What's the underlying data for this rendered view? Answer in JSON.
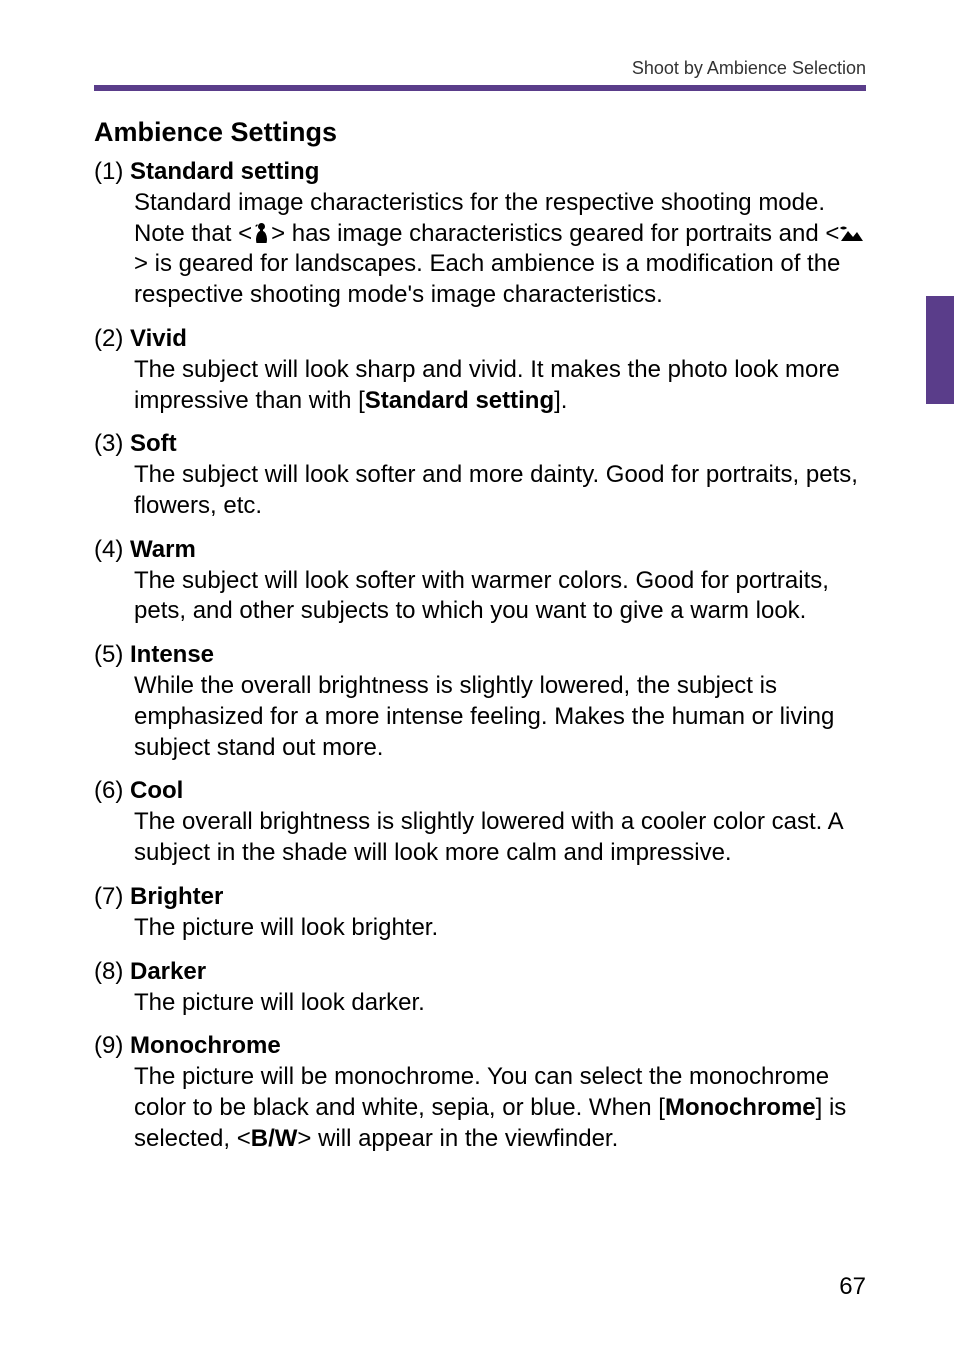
{
  "header": {
    "breadcrumb": "Shoot by Ambience Selection"
  },
  "colors": {
    "accent": "#5a3d8a",
    "text": "#000000",
    "headerText": "#333333"
  },
  "section": {
    "title": "Ambience Settings"
  },
  "items": [
    {
      "num": "(1)",
      "name": "Standard setting",
      "body_parts": [
        {
          "t": "text",
          "v": "Standard image characteristics for the respective shooting mode. Note that <"
        },
        {
          "t": "icon",
          "v": "portrait"
        },
        {
          "t": "text",
          "v": "> has image characteristics geared for portraits and <"
        },
        {
          "t": "icon",
          "v": "landscape"
        },
        {
          "t": "text",
          "v": "> is geared for landscapes. Each ambience is a modification of the respective shooting mode's image characteristics."
        }
      ]
    },
    {
      "num": "(2)",
      "name": "Vivid",
      "body_parts": [
        {
          "t": "text",
          "v": "The subject will look sharp and vivid. It makes the photo look more impressive than with ["
        },
        {
          "t": "bold",
          "v": "Standard setting"
        },
        {
          "t": "text",
          "v": "]."
        }
      ]
    },
    {
      "num": "(3)",
      "name": "Soft",
      "body_parts": [
        {
          "t": "text",
          "v": "The subject will look softer and more dainty. Good for portraits, pets, flowers, etc."
        }
      ]
    },
    {
      "num": "(4)",
      "name": "Warm",
      "body_parts": [
        {
          "t": "text",
          "v": "The subject will look softer with warmer colors. Good for portraits, pets, and other subjects to which you want to give a warm look."
        }
      ]
    },
    {
      "num": "(5)",
      "name": "Intense",
      "body_parts": [
        {
          "t": "text",
          "v": "While the overall brightness is slightly lowered, the subject is emphasized for a more intense feeling. Makes the human or living subject stand out more."
        }
      ]
    },
    {
      "num": "(6)",
      "name": "Cool",
      "body_parts": [
        {
          "t": "text",
          "v": "The overall brightness is slightly lowered with a cooler color cast. A subject in the shade will look more calm and impressive."
        }
      ]
    },
    {
      "num": "(7)",
      "name": "Brighter",
      "body_parts": [
        {
          "t": "text",
          "v": "The picture will look brighter."
        }
      ]
    },
    {
      "num": "(8)",
      "name": "Darker",
      "body_parts": [
        {
          "t": "text",
          "v": "The picture will look darker."
        }
      ]
    },
    {
      "num": "(9)",
      "name": "Monochrome",
      "body_parts": [
        {
          "t": "text",
          "v": "The picture will be monochrome. You can select the monochrome color to be black and white, sepia, or blue. When ["
        },
        {
          "t": "bold",
          "v": "Monochrome"
        },
        {
          "t": "text",
          "v": "] is selected, <"
        },
        {
          "t": "icon",
          "v": "bw"
        },
        {
          "t": "text",
          "v": "> will appear in the viewfinder."
        }
      ]
    }
  ],
  "page_number": "67"
}
